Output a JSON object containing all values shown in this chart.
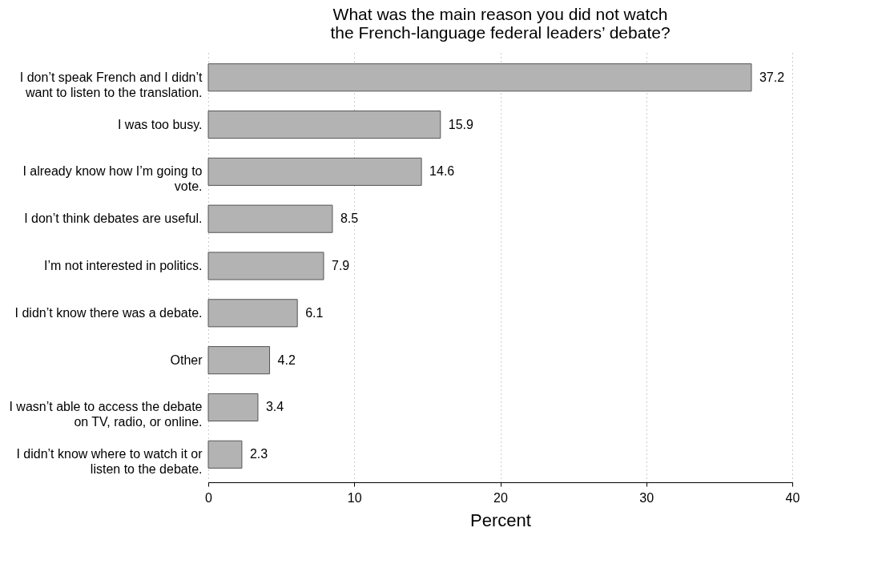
{
  "chart_data": {
    "type": "bar",
    "orientation": "horizontal",
    "title": "What was the main reason you did not watch the French-language federal leaders’ debate?",
    "xlabel": "Percent",
    "categories": [
      "I don’t speak French and I didn’t want to listen to the translation.",
      "I was too busy.",
      "I already know how I’m going to vote.",
      "I don’t think debates are useful.",
      "I’m not interested in politics.",
      "I didn’t know there was a debate.",
      "Other",
      "I wasn’t able to access the debate on TV, radio, or online.",
      "I didn’t know where to watch it or listen to the debate."
    ],
    "values": [
      37.2,
      15.9,
      14.6,
      8.5,
      7.9,
      6.1,
      4.2,
      3.4,
      2.3
    ],
    "color": "#b3b3b3",
    "xlim": [
      0,
      40
    ],
    "xticks": [
      0,
      10,
      20,
      30,
      40
    ],
    "grid": "x",
    "data_labels": true
  }
}
